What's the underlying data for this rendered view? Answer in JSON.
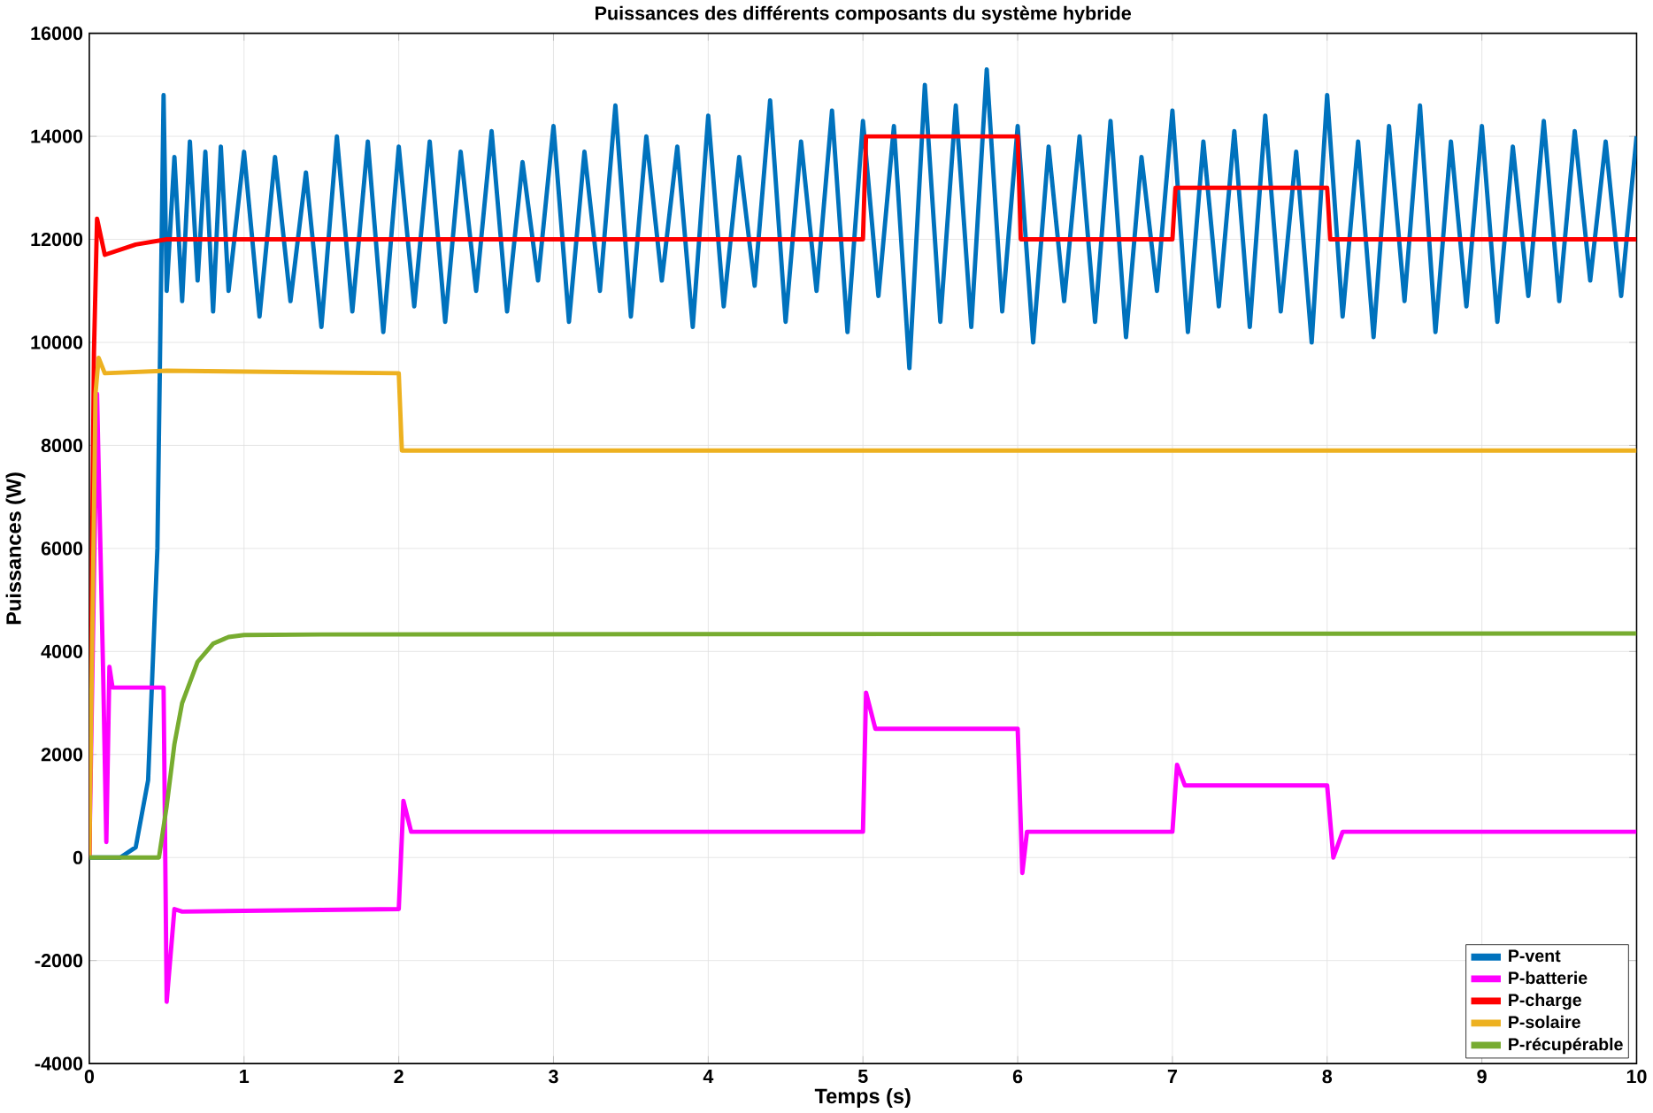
{
  "chart_data": {
    "type": "line",
    "title": "Puissances des différents composants du système hybride",
    "xlabel": "Temps (s)",
    "ylabel": "Puissances (W)",
    "xlim": [
      0,
      10
    ],
    "ylim": [
      -4000,
      16000
    ],
    "xticks": [
      0,
      1,
      2,
      3,
      4,
      5,
      6,
      7,
      8,
      9,
      10
    ],
    "yticks": [
      -4000,
      -2000,
      0,
      2000,
      4000,
      6000,
      8000,
      10000,
      12000,
      14000,
      16000
    ],
    "grid": true,
    "legend": "bottom right",
    "marker": "none",
    "line_style": "solid",
    "series": [
      {
        "name": "P-vent",
        "color": "#0072bd",
        "x": [
          0,
          0.2,
          0.3,
          0.38,
          0.44,
          0.48,
          0.5,
          0.55,
          0.6,
          0.65,
          0.7,
          0.75,
          0.8,
          0.85,
          0.9,
          1.0,
          1.1,
          1.2,
          1.3,
          1.4,
          1.5,
          1.6,
          1.7,
          1.8,
          1.9,
          2.0,
          2.1,
          2.2,
          2.3,
          2.4,
          2.5,
          2.6,
          2.7,
          2.8,
          2.9,
          3.0,
          3.1,
          3.2,
          3.3,
          3.4,
          3.5,
          3.6,
          3.7,
          3.8,
          3.9,
          4.0,
          4.1,
          4.2,
          4.3,
          4.4,
          4.5,
          4.6,
          4.7,
          4.8,
          4.9,
          5.0,
          5.1,
          5.2,
          5.3,
          5.4,
          5.5,
          5.6,
          5.7,
          5.8,
          5.9,
          6.0,
          6.1,
          6.2,
          6.3,
          6.4,
          6.5,
          6.6,
          6.7,
          6.8,
          6.9,
          7.0,
          7.1,
          7.2,
          7.3,
          7.4,
          7.5,
          7.6,
          7.7,
          7.8,
          7.9,
          8.0,
          8.1,
          8.2,
          8.3,
          8.4,
          8.5,
          8.6,
          8.7,
          8.8,
          8.9,
          9.0,
          9.1,
          9.2,
          9.3,
          9.4,
          9.5,
          9.6,
          9.7,
          9.8,
          9.9,
          10.0
        ],
        "values": [
          0,
          0,
          200,
          1500,
          6000,
          14800,
          11000,
          13600,
          10800,
          13900,
          11200,
          13700,
          10600,
          13800,
          11000,
          13700,
          10500,
          13600,
          10800,
          13300,
          10300,
          14000,
          10600,
          13900,
          10200,
          13800,
          10700,
          13900,
          10400,
          13700,
          11000,
          14100,
          10600,
          13500,
          11200,
          14200,
          10400,
          13700,
          11000,
          14600,
          10500,
          14000,
          11200,
          13800,
          10300,
          14400,
          10700,
          13600,
          11100,
          14700,
          10400,
          13900,
          11000,
          14500,
          10200,
          14300,
          10900,
          14200,
          9500,
          15000,
          10400,
          14600,
          10300,
          15300,
          10600,
          14200,
          10000,
          13800,
          10800,
          14000,
          10400,
          14300,
          10100,
          13600,
          11000,
          14500,
          10200,
          13900,
          10700,
          14100,
          10300,
          14400,
          10600,
          13700,
          10000,
          14800,
          10500,
          13900,
          10100,
          14200,
          10800,
          14600,
          10200,
          13900,
          10700,
          14200,
          10400,
          13800,
          10900,
          14300,
          10800,
          14100,
          11200,
          13900,
          10900,
          14000
        ]
      },
      {
        "name": "P-batterie",
        "color": "#ff00ff",
        "x": [
          0,
          0.05,
          0.09,
          0.11,
          0.13,
          0.15,
          0.45,
          0.48,
          0.5,
          0.55,
          0.6,
          2.0,
          2.03,
          2.08,
          2.15,
          5.0,
          5.02,
          5.08,
          5.15,
          6.0,
          6.03,
          6.06,
          6.12,
          7.0,
          7.03,
          7.08,
          7.15,
          8.0,
          8.04,
          8.1,
          10.0
        ],
        "values": [
          0,
          9000,
          3500,
          300,
          3700,
          3300,
          3300,
          3300,
          -2800,
          -1000,
          -1050,
          -1000,
          1100,
          500,
          500,
          500,
          3200,
          2500,
          2500,
          2500,
          -300,
          500,
          500,
          500,
          1800,
          1400,
          1400,
          1400,
          0,
          500,
          500
        ]
      },
      {
        "name": "P-charge",
        "color": "#ff0000",
        "x": [
          0,
          0.03,
          0.05,
          0.1,
          0.3,
          0.5,
          5.0,
          5.02,
          6.0,
          6.02,
          7.0,
          7.02,
          8.0,
          8.02,
          10.0
        ],
        "values": [
          0,
          9800,
          12400,
          11700,
          11900,
          12000,
          12000,
          14000,
          14000,
          12000,
          12000,
          13000,
          13000,
          12000,
          12000
        ]
      },
      {
        "name": "P-solaire",
        "color": "#edb120",
        "x": [
          0,
          0.04,
          0.06,
          0.1,
          0.5,
          2.0,
          2.02,
          10.0
        ],
        "values": [
          0,
          9000,
          9700,
          9400,
          9450,
          9400,
          7900,
          7900
        ]
      },
      {
        "name": "P-récupérable",
        "color": "#77ac30",
        "x": [
          0,
          0.45,
          0.5,
          0.55,
          0.6,
          0.7,
          0.8,
          0.9,
          1.0,
          1.5,
          10.0
        ],
        "values": [
          0,
          0,
          1000,
          2200,
          3000,
          3800,
          4150,
          4280,
          4320,
          4330,
          4350
        ]
      }
    ]
  }
}
